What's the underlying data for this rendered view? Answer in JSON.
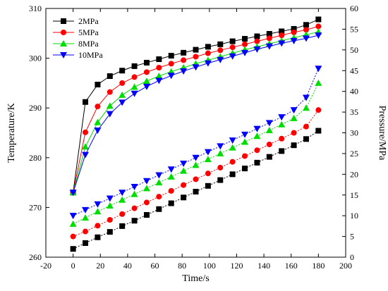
{
  "chart_data": {
    "type": "line",
    "xlabel": "Time/s",
    "ylabel_left": "Temperature/K",
    "ylabel_right": "Pressure/MPa",
    "xlim": [
      -20,
      200
    ],
    "ylim_left": [
      260,
      310
    ],
    "ylim_right": [
      0,
      60
    ],
    "x_ticks": [
      -20,
      0,
      20,
      40,
      60,
      80,
      100,
      120,
      140,
      160,
      180,
      200
    ],
    "y_left_ticks": [
      260,
      270,
      280,
      290,
      300,
      310
    ],
    "y_right_ticks": [
      0,
      5,
      10,
      15,
      20,
      25,
      30,
      35,
      40,
      45,
      50,
      55,
      60
    ],
    "x": [
      0,
      9,
      18,
      27,
      36,
      45,
      54,
      63,
      72,
      81,
      90,
      99,
      108,
      117,
      126,
      135,
      144,
      153,
      162,
      171,
      180
    ],
    "legend_position": "top-left",
    "series": [
      {
        "name": "2MPa",
        "color": "#000000",
        "marker": "square",
        "temperature": [
          273.0,
          291.2,
          294.7,
          296.4,
          297.5,
          298.4,
          299.1,
          299.8,
          300.5,
          301.1,
          301.7,
          302.3,
          302.8,
          303.4,
          303.9,
          304.4,
          304.9,
          305.4,
          305.9,
          306.7,
          307.8
        ],
        "pressure": [
          2.0,
          3.4,
          4.8,
          6.1,
          7.5,
          8.8,
          10.2,
          11.6,
          13.0,
          14.4,
          15.8,
          17.2,
          18.6,
          20.0,
          21.4,
          22.8,
          24.2,
          25.6,
          27.0,
          28.5,
          30.5
        ]
      },
      {
        "name": "5MPa",
        "color": "#ff0000",
        "marker": "circle",
        "temperature": [
          273.0,
          285.1,
          290.3,
          293.2,
          295.0,
          296.2,
          297.2,
          298.1,
          298.9,
          299.6,
          300.3,
          301.0,
          301.6,
          302.2,
          302.8,
          303.4,
          304.0,
          304.6,
          305.2,
          305.7,
          306.4
        ],
        "pressure": [
          5.0,
          6.2,
          7.6,
          9.0,
          10.4,
          11.8,
          13.2,
          14.6,
          16.0,
          17.4,
          18.8,
          20.2,
          21.6,
          23.0,
          24.4,
          25.8,
          27.2,
          28.6,
          30.0,
          31.5,
          35.5
        ]
      },
      {
        "name": "8MPa",
        "color": "#00dd00",
        "marker": "triangle-up",
        "temperature": [
          273.0,
          282.2,
          287.1,
          290.4,
          292.6,
          294.2,
          295.4,
          296.4,
          297.3,
          298.1,
          298.9,
          299.6,
          300.3,
          301.0,
          301.7,
          302.3,
          302.9,
          303.5,
          304.1,
          304.7,
          305.3
        ],
        "pressure": [
          8.0,
          9.5,
          11.0,
          12.4,
          13.8,
          15.2,
          16.6,
          18.0,
          19.4,
          20.8,
          22.2,
          23.6,
          25.0,
          26.4,
          27.8,
          29.2,
          30.6,
          32.0,
          33.5,
          36.0,
          42.0
        ]
      },
      {
        "name": "10MPa",
        "color": "#0000ff",
        "marker": "triangle-down",
        "temperature": [
          273.0,
          280.6,
          285.5,
          288.8,
          291.1,
          292.9,
          294.3,
          295.5,
          296.5,
          297.4,
          298.2,
          299.0,
          299.7,
          300.4,
          301.1,
          301.8,
          302.4,
          303.0,
          303.5,
          304.0,
          304.6
        ],
        "pressure": [
          10.0,
          11.4,
          12.8,
          14.2,
          15.6,
          17.0,
          18.4,
          19.8,
          21.2,
          22.6,
          24.0,
          25.4,
          26.8,
          28.2,
          29.6,
          31.0,
          32.4,
          33.8,
          35.5,
          38.5,
          45.5
        ]
      }
    ]
  }
}
